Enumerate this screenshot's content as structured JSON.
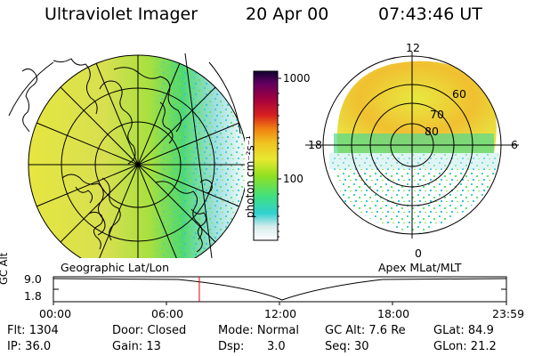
{
  "header": {
    "instrument": "Ultraviolet Imager",
    "date": "20 Apr 00",
    "time": "07:43:46 UT"
  },
  "colorbar": {
    "unit_label": "photon cm⁻²s⁻¹",
    "ticks": [
      "1000",
      "100"
    ]
  },
  "left_panel": {
    "caption": "Geographic Lat/Lon"
  },
  "right_panel": {
    "caption": "Apex MLat/MLT",
    "mlt_labels": [
      "12",
      "18",
      "6",
      "0"
    ],
    "lat_labels": [
      "60",
      "70",
      "80"
    ]
  },
  "timeline": {
    "ylabel": "GC Alt",
    "y_ticks": [
      "9.0",
      "1.8"
    ],
    "x_ticks": [
      "00:00",
      "06:00",
      "12:00",
      "18:00",
      "23:59"
    ],
    "current_marker_hours": 7.73,
    "marker_color": "#e00000"
  },
  "status": {
    "flt": "Flt: 1304",
    "ip": "IP: 36.0",
    "door": "Door: Closed",
    "gain": "Gain: 13",
    "mode": "Mode: Normal",
    "dsp_label": "Dsp:",
    "dsp_value": "3.0",
    "gc_alt": "GC Alt: 7.6 Re",
    "seq": "Seq: 30",
    "glat": "GLat: 84.9",
    "glon": "GLon: 21.2"
  }
}
